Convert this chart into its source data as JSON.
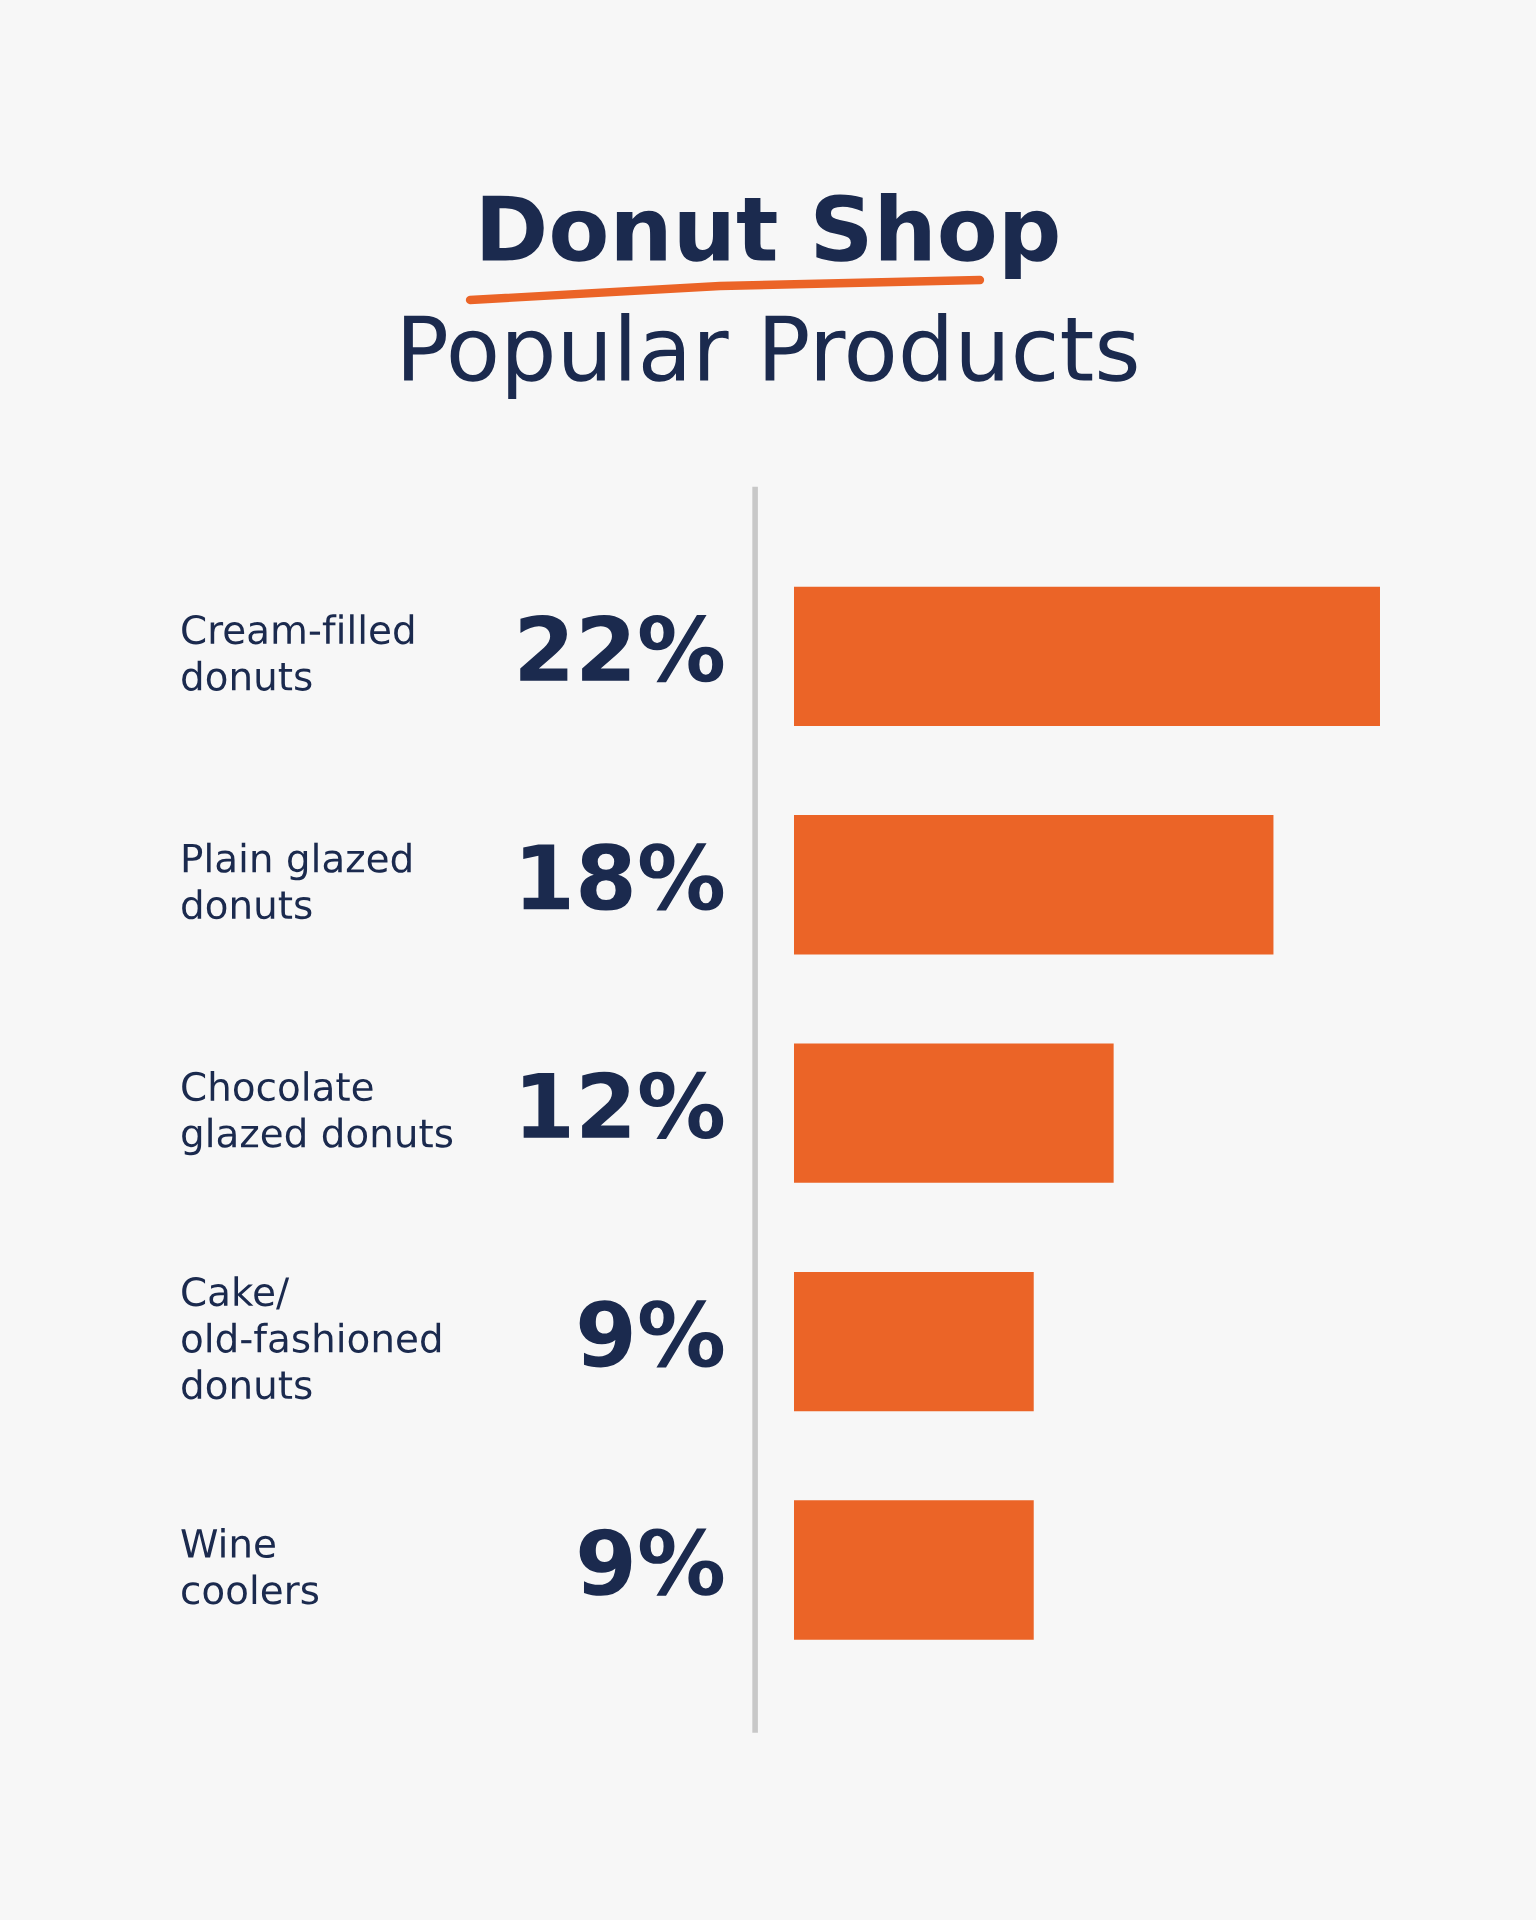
{
  "chart_data": {
    "type": "bar",
    "orientation": "horizontal",
    "title": "Donut Shop",
    "subtitle": "Popular Products",
    "categories": [
      "Cream-filled\ndonuts",
      "Plain glazed\ndonuts",
      "Chocolate\nglazed donuts",
      "Cake/\nold-fashioned\ndonuts",
      "Wine\ncoolers"
    ],
    "values": [
      22,
      18,
      12,
      9,
      9
    ],
    "value_labels": [
      "22%",
      "18%",
      "12%",
      "9%",
      "9%"
    ],
    "color": "#eb6427",
    "xlim": [
      0,
      22
    ],
    "legend": false
  }
}
